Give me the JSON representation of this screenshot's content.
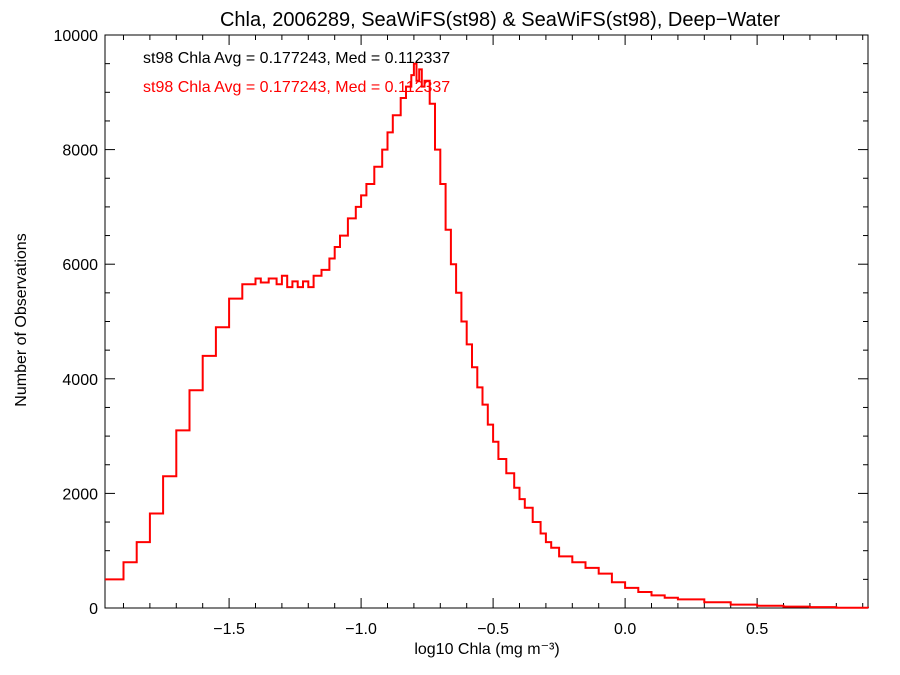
{
  "chart_data": {
    "type": "line",
    "title": "Chla, 2006289, SeaWiFS(st98) & SeaWiFS(st98), Deep−Water",
    "xlabel": "log10 Chla (mg m⁻³)",
    "ylabel": "Number of Observations",
    "xlim": [
      -1.97,
      0.92
    ],
    "ylim": [
      0,
      10000
    ],
    "x_ticks": [
      -1.5,
      -1.0,
      -0.5,
      0.0,
      0.5
    ],
    "x_tick_labels": [
      "−1.5",
      "−1.0",
      "−0.5",
      "0.0",
      "0.5"
    ],
    "y_ticks": [
      0,
      2000,
      4000,
      6000,
      8000,
      10000
    ],
    "y_tick_labels": [
      "0",
      "2000",
      "4000",
      "6000",
      "8000",
      "10000"
    ],
    "grid": false,
    "step": true,
    "annotations": [
      {
        "text": "st98 Chla Avg = 0.177243, Med = 0.112337",
        "color": "#000000"
      },
      {
        "text": "st98 Chla Avg = 0.177243, Med = 0.112337",
        "color": "#ff0000"
      }
    ],
    "series": [
      {
        "color": "#ff0000",
        "x": [
          -1.97,
          -1.9,
          -1.85,
          -1.8,
          -1.75,
          -1.7,
          -1.65,
          -1.6,
          -1.55,
          -1.5,
          -1.45,
          -1.4,
          -1.38,
          -1.35,
          -1.32,
          -1.3,
          -1.28,
          -1.26,
          -1.24,
          -1.22,
          -1.2,
          -1.18,
          -1.15,
          -1.12,
          -1.1,
          -1.08,
          -1.05,
          -1.02,
          -1.0,
          -0.98,
          -0.95,
          -0.92,
          -0.9,
          -0.88,
          -0.85,
          -0.83,
          -0.81,
          -0.8,
          -0.79,
          -0.78,
          -0.77,
          -0.76,
          -0.74,
          -0.72,
          -0.7,
          -0.68,
          -0.66,
          -0.64,
          -0.62,
          -0.6,
          -0.58,
          -0.56,
          -0.54,
          -0.52,
          -0.5,
          -0.48,
          -0.45,
          -0.42,
          -0.4,
          -0.38,
          -0.35,
          -0.32,
          -0.3,
          -0.28,
          -0.25,
          -0.2,
          -0.15,
          -0.1,
          -0.05,
          0.0,
          0.05,
          0.1,
          0.15,
          0.2,
          0.3,
          0.4,
          0.5,
          0.6,
          0.7,
          0.8,
          0.92
        ],
        "y": [
          500,
          800,
          1150,
          1650,
          2300,
          3100,
          3800,
          4400,
          4900,
          5400,
          5650,
          5750,
          5680,
          5750,
          5650,
          5800,
          5600,
          5700,
          5600,
          5700,
          5600,
          5800,
          5900,
          6100,
          6300,
          6500,
          6800,
          7000,
          7200,
          7400,
          7700,
          8000,
          8300,
          8600,
          8900,
          9100,
          9300,
          9500,
          9200,
          9400,
          9100,
          9200,
          8800,
          8000,
          7400,
          6600,
          6000,
          5500,
          5000,
          4600,
          4200,
          3850,
          3550,
          3200,
          2900,
          2600,
          2350,
          2100,
          1900,
          1750,
          1500,
          1300,
          1150,
          1050,
          900,
          800,
          700,
          600,
          450,
          350,
          280,
          220,
          180,
          150,
          100,
          60,
          40,
          25,
          15,
          5,
          0
        ]
      }
    ]
  }
}
